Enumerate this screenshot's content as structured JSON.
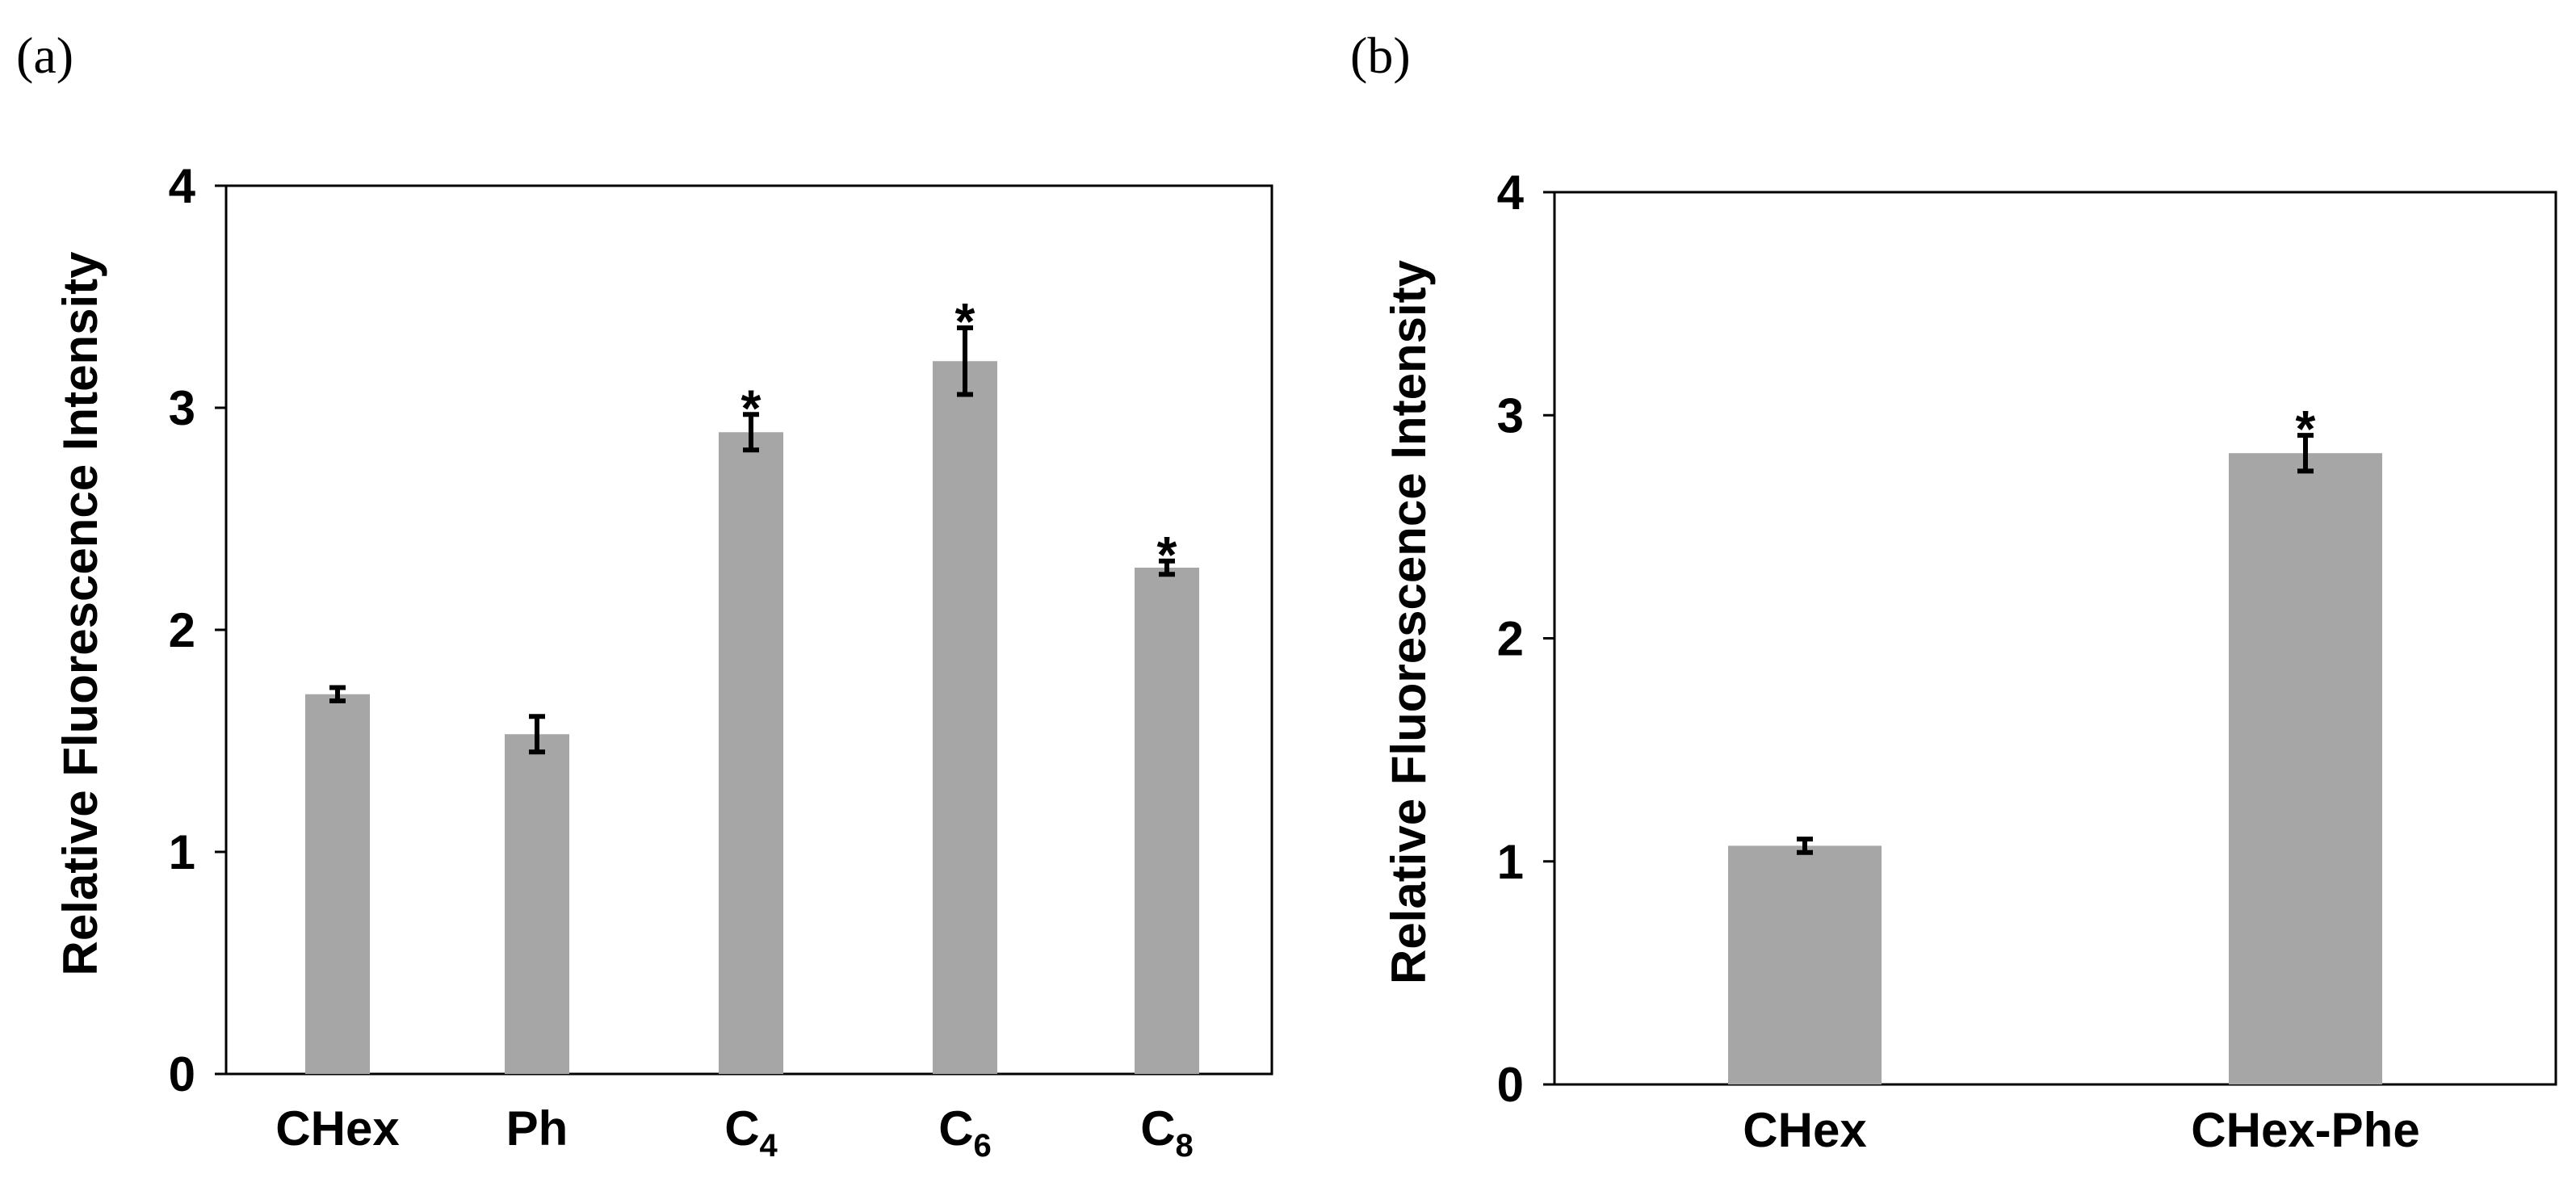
{
  "chart_data": [
    {
      "type": "bar",
      "panel_label": "(a)",
      "title": "",
      "xlabel": "",
      "ylabel": "Relative Fluorescence Intensity",
      "ylim": [
        0,
        4
      ],
      "yticks": [
        "0",
        "1",
        "2",
        "3",
        "4"
      ],
      "categories": [
        {
          "main": "CHex",
          "sub": ""
        },
        {
          "main": "Ph",
          "sub": ""
        },
        {
          "main": "C",
          "sub": "4"
        },
        {
          "main": "C",
          "sub": "6"
        },
        {
          "main": "C",
          "sub": "8"
        }
      ],
      "values": [
        1.71,
        1.53,
        2.89,
        3.21,
        2.28
      ],
      "errors": [
        0.03,
        0.08,
        0.08,
        0.15,
        0.03
      ],
      "significance": [
        "",
        "",
        "*",
        "*",
        "*"
      ],
      "bar_color": "#a6a6a6",
      "grid": false
    },
    {
      "type": "bar",
      "panel_label": "(b)",
      "title": "",
      "xlabel": "",
      "ylabel": "Relative Fluorescence Intensity",
      "ylim": [
        0,
        4
      ],
      "yticks": [
        "0",
        "1",
        "2",
        "3",
        "4"
      ],
      "categories": [
        {
          "main": "CHex",
          "sub": ""
        },
        {
          "main": "CHex-Phe",
          "sub": ""
        }
      ],
      "values": [
        1.07,
        2.83
      ],
      "errors": [
        0.03,
        0.08
      ],
      "significance": [
        "",
        "*"
      ],
      "bar_color": "#a6a6a6",
      "grid": false
    }
  ]
}
